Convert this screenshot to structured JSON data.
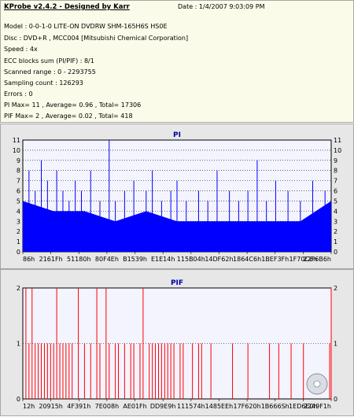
{
  "info": {
    "title": "KProbe v2.4.2 - Designed by Karr",
    "date": "Date : 1/4/2007 9:03:09 PM",
    "lines": [
      "Model : 0-0-1-0 LITE-ON DVDRW SHM-165H6S HS0E",
      "Disc : DVD+R , MCC004 [Mitsubishi Chemical Corporation]",
      "Speed : 4x",
      "ECC blocks sum (PI/PIF) : 8/1",
      "Scanned range : 0 - 2293755",
      "Sampling count : 126293",
      "Errors : 0",
      "PI Max= 11 , Average= 0.96 , Total= 17306",
      "PIF Max= 2 , Average= 0.02 , Total= 418"
    ]
  },
  "colors": {
    "pi": "#0000ff",
    "pif": "#ff0000",
    "plot_bg": "#f4f4ff",
    "grid": "#000000",
    "title": "#0000aa"
  },
  "chart_data": [
    {
      "type": "bar",
      "title": "PI",
      "ylim": [
        0,
        11
      ],
      "yticks": [
        "0",
        "1",
        "2",
        "3",
        "4",
        "5",
        "6",
        "7",
        "8",
        "9",
        "10",
        "11"
      ],
      "xticks": [
        "86h",
        "2161Fh",
        "51180h",
        "80F4Eh",
        "B1539h",
        "E1E14h",
        "115B04h",
        "14DF62h",
        "1864C6h",
        "1BEF3Fh",
        "1F70C6h",
        "22F6B6h"
      ],
      "baseline": [
        {
          "x": 0.0,
          "y": 5
        },
        {
          "x": 0.1,
          "y": 4
        },
        {
          "x": 0.2,
          "y": 4
        },
        {
          "x": 0.3,
          "y": 3
        },
        {
          "x": 0.4,
          "y": 4
        },
        {
          "x": 0.5,
          "y": 3
        },
        {
          "x": 0.6,
          "y": 3
        },
        {
          "x": 0.7,
          "y": 3
        },
        {
          "x": 0.8,
          "y": 3
        },
        {
          "x": 0.9,
          "y": 3
        },
        {
          "x": 1.0,
          "y": 5
        }
      ],
      "spikes": [
        {
          "x": 0.02,
          "y": 8
        },
        {
          "x": 0.04,
          "y": 6
        },
        {
          "x": 0.06,
          "y": 9
        },
        {
          "x": 0.08,
          "y": 7
        },
        {
          "x": 0.11,
          "y": 8
        },
        {
          "x": 0.13,
          "y": 6
        },
        {
          "x": 0.15,
          "y": 5
        },
        {
          "x": 0.17,
          "y": 7
        },
        {
          "x": 0.19,
          "y": 6
        },
        {
          "x": 0.22,
          "y": 8
        },
        {
          "x": 0.25,
          "y": 5
        },
        {
          "x": 0.28,
          "y": 11
        },
        {
          "x": 0.3,
          "y": 5
        },
        {
          "x": 0.33,
          "y": 6
        },
        {
          "x": 0.36,
          "y": 7
        },
        {
          "x": 0.4,
          "y": 6
        },
        {
          "x": 0.42,
          "y": 8
        },
        {
          "x": 0.45,
          "y": 5
        },
        {
          "x": 0.48,
          "y": 6
        },
        {
          "x": 0.5,
          "y": 7
        },
        {
          "x": 0.53,
          "y": 5
        },
        {
          "x": 0.57,
          "y": 6
        },
        {
          "x": 0.6,
          "y": 5
        },
        {
          "x": 0.63,
          "y": 8
        },
        {
          "x": 0.67,
          "y": 6
        },
        {
          "x": 0.7,
          "y": 5
        },
        {
          "x": 0.73,
          "y": 6
        },
        {
          "x": 0.76,
          "y": 9
        },
        {
          "x": 0.79,
          "y": 5
        },
        {
          "x": 0.82,
          "y": 7
        },
        {
          "x": 0.86,
          "y": 6
        },
        {
          "x": 0.9,
          "y": 5
        },
        {
          "x": 0.94,
          "y": 7
        },
        {
          "x": 0.98,
          "y": 6
        }
      ]
    },
    {
      "type": "bar",
      "title": "PIF",
      "ylim": [
        0,
        2
      ],
      "yticks": [
        "0",
        "1",
        "2"
      ],
      "xticks": [
        "12h",
        "20915h",
        "4F391h",
        "7E008h",
        "AE01Fh",
        "DD9E9h",
        "111574h",
        "1485EEh",
        "17F620h",
        "1B666Sh",
        "1ED6E0h",
        "2249F1h"
      ],
      "spikes": [
        {
          "x": 0.01,
          "y": 2
        },
        {
          "x": 0.02,
          "y": 1
        },
        {
          "x": 0.03,
          "y": 2
        },
        {
          "x": 0.04,
          "y": 1
        },
        {
          "x": 0.05,
          "y": 1
        },
        {
          "x": 0.06,
          "y": 1
        },
        {
          "x": 0.07,
          "y": 1
        },
        {
          "x": 0.08,
          "y": 1
        },
        {
          "x": 0.09,
          "y": 1
        },
        {
          "x": 0.1,
          "y": 1
        },
        {
          "x": 0.11,
          "y": 2
        },
        {
          "x": 0.12,
          "y": 1
        },
        {
          "x": 0.13,
          "y": 1
        },
        {
          "x": 0.14,
          "y": 1
        },
        {
          "x": 0.15,
          "y": 1
        },
        {
          "x": 0.16,
          "y": 1
        },
        {
          "x": 0.18,
          "y": 2
        },
        {
          "x": 0.2,
          "y": 1
        },
        {
          "x": 0.22,
          "y": 1
        },
        {
          "x": 0.24,
          "y": 2
        },
        {
          "x": 0.25,
          "y": 1
        },
        {
          "x": 0.27,
          "y": 2
        },
        {
          "x": 0.28,
          "y": 1
        },
        {
          "x": 0.3,
          "y": 1
        },
        {
          "x": 0.31,
          "y": 1
        },
        {
          "x": 0.33,
          "y": 1
        },
        {
          "x": 0.35,
          "y": 1
        },
        {
          "x": 0.36,
          "y": 1
        },
        {
          "x": 0.38,
          "y": 1
        },
        {
          "x": 0.39,
          "y": 2
        },
        {
          "x": 0.41,
          "y": 1
        },
        {
          "x": 0.42,
          "y": 1
        },
        {
          "x": 0.43,
          "y": 1
        },
        {
          "x": 0.44,
          "y": 1
        },
        {
          "x": 0.45,
          "y": 1
        },
        {
          "x": 0.46,
          "y": 1
        },
        {
          "x": 0.47,
          "y": 1
        },
        {
          "x": 0.48,
          "y": 1
        },
        {
          "x": 0.49,
          "y": 1
        },
        {
          "x": 0.51,
          "y": 1
        },
        {
          "x": 0.52,
          "y": 1
        },
        {
          "x": 0.55,
          "y": 1
        },
        {
          "x": 0.57,
          "y": 1
        },
        {
          "x": 0.58,
          "y": 1
        },
        {
          "x": 0.61,
          "y": 1
        },
        {
          "x": 0.68,
          "y": 1
        },
        {
          "x": 0.73,
          "y": 1
        },
        {
          "x": 0.8,
          "y": 1
        },
        {
          "x": 0.83,
          "y": 1
        },
        {
          "x": 0.87,
          "y": 1
        },
        {
          "x": 0.91,
          "y": 1
        },
        {
          "x": 0.995,
          "y": 1
        },
        {
          "x": 1.0,
          "y": 2
        }
      ]
    }
  ]
}
